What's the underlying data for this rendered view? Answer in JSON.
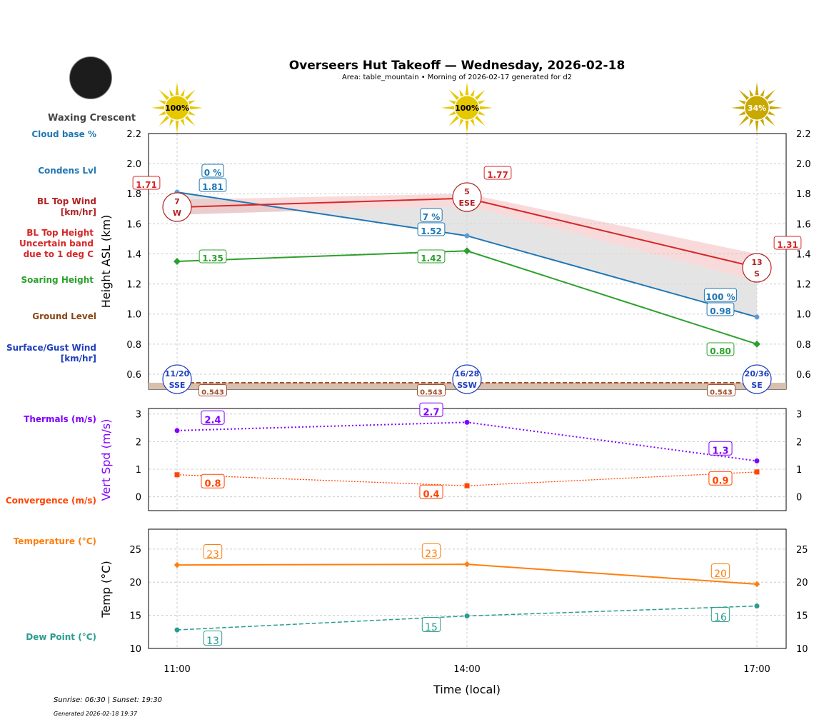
{
  "header": {
    "title": "Overseers Hut Takeoff — Wednesday, 2026-02-18",
    "subtitle": "Area: table_mountain • Morning of 2026-02-17 generated for d2",
    "moon_phase": "Waxing Crescent"
  },
  "side_labels": {
    "cloud_base": "Cloud base %",
    "condens": "Condens Lvl",
    "bl_wind": "BL Top Wind [km/hr]",
    "bl_height": "BL Top Height Uncertain band due to 1 deg C",
    "soaring": "Soaring Height",
    "ground": "Ground Level",
    "surface_wind": "Surface/Gust Wind [km/hr]",
    "thermals": "Thermals (m/s)",
    "convergence": "Convergence (m/s)",
    "temperature": "Temperature (°C)",
    "dew_point": "Dew Point (°C)"
  },
  "colors": {
    "condens": "#1f77b4",
    "bl": "#d62728",
    "bl_wind": "#b22222",
    "soaring": "#2ca02c",
    "ground": "#8b4513",
    "surface_wind": "#1f3fbf",
    "thermals": "#8000ff",
    "convergence": "#ff4500",
    "temperature": "#ff7f0e",
    "dew_point": "#2a9d8f",
    "sun": "#e6c800"
  },
  "footer": {
    "sun": "Sunrise: 06:30 | Sunset: 19:30",
    "generated": "Generated 2026-02-18 19:37"
  },
  "chart_data": [
    {
      "type": "line",
      "ylabel": "Height ASL (km)",
      "ylim": [
        0.5,
        2.2
      ],
      "yticks": [
        "0.6",
        "0.8",
        "1.0",
        "1.2",
        "1.4",
        "1.6",
        "1.8",
        "2.0",
        "2.2"
      ],
      "grid": true,
      "x": [
        "11:00",
        "14:00",
        "17:00"
      ],
      "sun_percent": [
        "100%",
        "100%",
        "34%"
      ],
      "condens_level": [
        1.81,
        1.52,
        0.98
      ],
      "condens_labels": [
        "1.81",
        "1.52",
        "0.98"
      ],
      "cloud_base_pct": [
        "0 %",
        "7 %",
        "100 %"
      ],
      "bl_top": [
        1.71,
        1.77,
        1.31
      ],
      "bl_top_labels": [
        "1.71",
        "1.77",
        "1.31"
      ],
      "bl_band_low": [
        1.66,
        1.72,
        1.22
      ],
      "bl_band_high": [
        1.76,
        1.8,
        1.4
      ],
      "bl_wind": [
        {
          "speed": "7",
          "dir": "W"
        },
        {
          "speed": "5",
          "dir": "ESE"
        },
        {
          "speed": "13",
          "dir": "S"
        }
      ],
      "soaring": [
        1.35,
        1.42,
        0.8
      ],
      "soaring_labels": [
        "1.35",
        "1.42",
        "0.80"
      ],
      "ground": 0.543,
      "ground_label": "0.543",
      "surface_wind": [
        {
          "speed": "11/20",
          "dir": "SSE"
        },
        {
          "speed": "16/28",
          "dir": "SSW"
        },
        {
          "speed": "20/36",
          "dir": "SE"
        }
      ]
    },
    {
      "type": "line",
      "ylabel": "Vert Spd (m/s)",
      "ylim": [
        -0.5,
        3.2
      ],
      "yticks": [
        "0",
        "1",
        "2",
        "3"
      ],
      "grid": true,
      "thermals": [
        2.4,
        2.7,
        1.3
      ],
      "thermal_labels": [
        "2.4",
        "2.7",
        "1.3"
      ],
      "convergence": [
        0.8,
        0.4,
        0.9
      ],
      "convergence_labels": [
        "0.8",
        "0.4",
        "0.9"
      ]
    },
    {
      "type": "line",
      "ylabel": "Temp (°C)",
      "xlabel": "Time (local)",
      "ylim": [
        10,
        28
      ],
      "yticks": [
        "10",
        "15",
        "20",
        "25"
      ],
      "grid": true,
      "temperature": [
        22.6,
        22.7,
        19.7
      ],
      "temperature_labels": [
        "23",
        "23",
        "20"
      ],
      "dew_point": [
        12.8,
        14.9,
        16.4
      ],
      "dew_point_labels": [
        "13",
        "15",
        "16"
      ]
    }
  ]
}
